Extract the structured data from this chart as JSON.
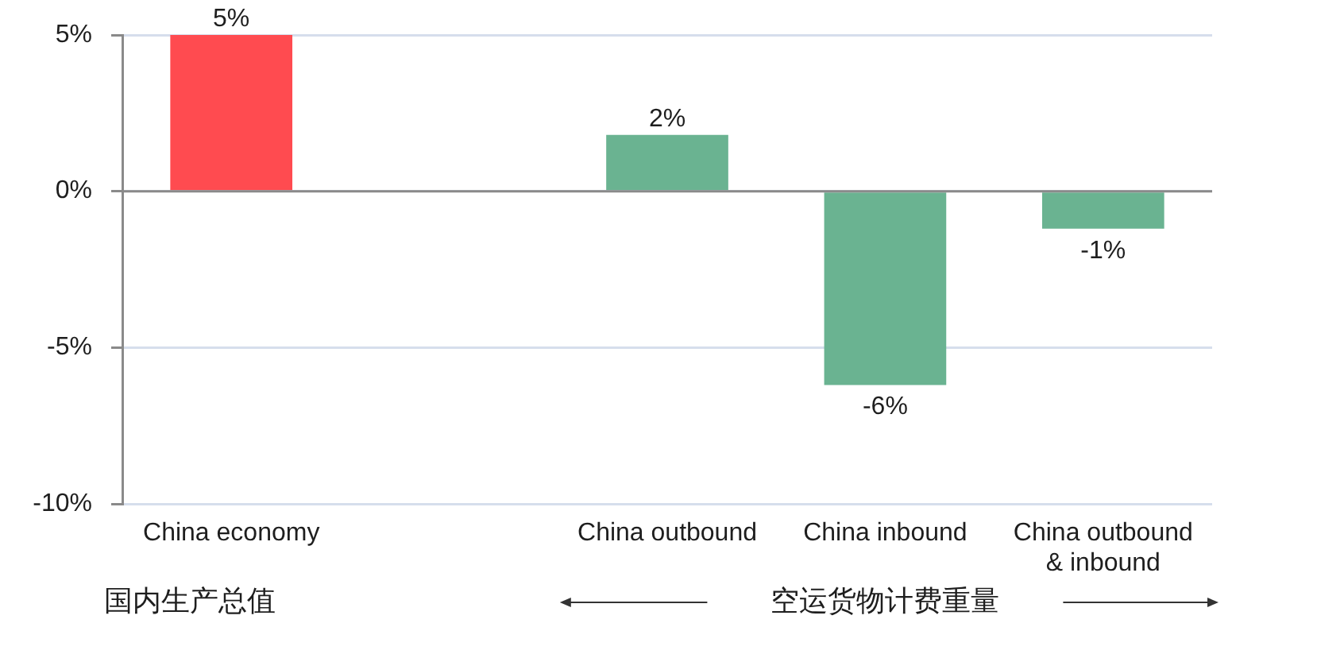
{
  "chart_data": {
    "type": "bar",
    "categories": [
      "China economy",
      null,
      "China outbound",
      "China inbound",
      "China outbound & inbound"
    ],
    "values": [
      5,
      null,
      1.8,
      -6.2,
      -1.2
    ],
    "colors": [
      "#ff4b50",
      "#6ab391",
      "#6ab391",
      "#6ab391",
      "#6ab391"
    ],
    "value_labels": [
      "5%",
      null,
      "2%",
      "-6%",
      "-1%"
    ],
    "ylim": [
      -10,
      5
    ],
    "yticks": [
      {
        "value": -10,
        "label": "-10%"
      },
      {
        "value": -5,
        "label": "-5%"
      },
      {
        "value": 0,
        "label": "0%"
      },
      {
        "value": 5,
        "label": "5%"
      }
    ],
    "grid": "y",
    "annotations": [
      "国内生产总值",
      "空运货物计费重量"
    ]
  }
}
